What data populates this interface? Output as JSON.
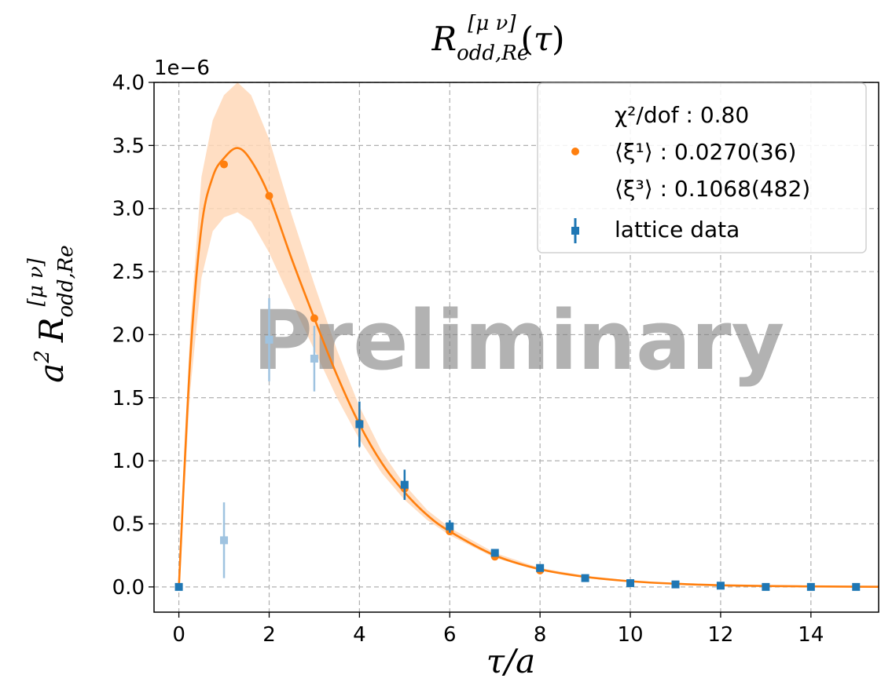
{
  "chart_data": {
    "type": "scatter",
    "title": "R_{odd,Re}^{[μν]}(τ)",
    "xlabel": "τ/a",
    "ylabel": "a² R_{odd,Re}^{[μν]}",
    "y_scale_label": "1e−6",
    "watermark": "Preliminary",
    "xlim": [
      -0.55,
      15.5
    ],
    "ylim": [
      -0.2,
      4.0
    ],
    "x_ticks": [
      0,
      2,
      4,
      6,
      8,
      10,
      12,
      14
    ],
    "y_ticks": [
      0.0,
      0.5,
      1.0,
      1.5,
      2.0,
      2.5,
      3.0,
      3.5,
      4.0
    ],
    "x_tick_labels": [
      "0",
      "2",
      "4",
      "6",
      "8",
      "10",
      "12",
      "14"
    ],
    "y_tick_labels": [
      "0.0",
      "0.5",
      "1.0",
      "1.5",
      "2.0",
      "2.5",
      "3.0",
      "3.5",
      "4.0"
    ],
    "grid": true,
    "legend_position": "top-right",
    "colors": {
      "fit": "#ff7f0e",
      "band": "#ffd8b8",
      "data": "#1f77b4",
      "data_excluded": "#9fc3e0"
    },
    "legend": {
      "chi2_label": "χ²/dof : 0.80",
      "xi1_label": "⟨ξ¹⟩ : 0.0270(36)",
      "xi3_label": "⟨ξ³⟩ : 0.1068(482)",
      "data_label": "lattice data"
    },
    "series": [
      {
        "name": "lattice data",
        "x": [
          0,
          4,
          5,
          6,
          7,
          8,
          9,
          10,
          11,
          12,
          13,
          14,
          15
        ],
        "y": [
          0.0,
          1.29,
          0.81,
          0.48,
          0.27,
          0.15,
          0.07,
          0.03,
          0.02,
          0.01,
          0.0,
          0.0,
          0.0
        ],
        "yerr": [
          0.02,
          0.18,
          0.12,
          0.05,
          0.03,
          0.02,
          0.015,
          0.01,
          0.01,
          0.005,
          0.005,
          0.005,
          0.005
        ]
      },
      {
        "name": "lattice data (excluded from fit)",
        "x": [
          1,
          2,
          3
        ],
        "y": [
          0.37,
          1.96,
          1.81
        ],
        "yerr": [
          0.3,
          0.33,
          0.26
        ]
      },
      {
        "name": "fit points",
        "x": [
          1,
          2,
          3,
          4,
          5,
          6,
          7,
          8
        ],
        "y": [
          3.35,
          3.1,
          2.13,
          1.3,
          0.78,
          0.44,
          0.24,
          0.13
        ]
      },
      {
        "name": "fit curve",
        "x": [
          0,
          0.25,
          0.5,
          0.75,
          1.0,
          1.3,
          1.6,
          2.0,
          2.5,
          3.0,
          3.5,
          4.0,
          4.5,
          5.0,
          5.5,
          6.0,
          7.0,
          8.0,
          9.0,
          10.0,
          11.0,
          12.0,
          13.0,
          14.0,
          15.0,
          15.5
        ],
        "y": [
          0.0,
          1.8,
          2.85,
          3.25,
          3.4,
          3.48,
          3.38,
          3.1,
          2.6,
          2.13,
          1.68,
          1.29,
          0.98,
          0.75,
          0.57,
          0.44,
          0.25,
          0.14,
          0.08,
          0.045,
          0.025,
          0.013,
          0.007,
          0.004,
          0.002,
          0.001
        ],
        "y_lower": [
          0.0,
          1.55,
          2.45,
          2.82,
          2.93,
          2.97,
          2.9,
          2.65,
          2.26,
          1.88,
          1.5,
          1.17,
          0.9,
          0.69,
          0.53,
          0.41,
          0.23,
          0.13,
          0.07,
          0.04,
          0.022,
          0.012,
          0.006,
          0.003,
          0.0015,
          0.001
        ],
        "y_upper": [
          0.0,
          2.05,
          3.25,
          3.7,
          3.9,
          4.0,
          3.9,
          3.55,
          2.95,
          2.4,
          1.88,
          1.43,
          1.07,
          0.81,
          0.61,
          0.47,
          0.27,
          0.15,
          0.09,
          0.05,
          0.028,
          0.015,
          0.008,
          0.005,
          0.0025,
          0.0012
        ]
      }
    ]
  }
}
